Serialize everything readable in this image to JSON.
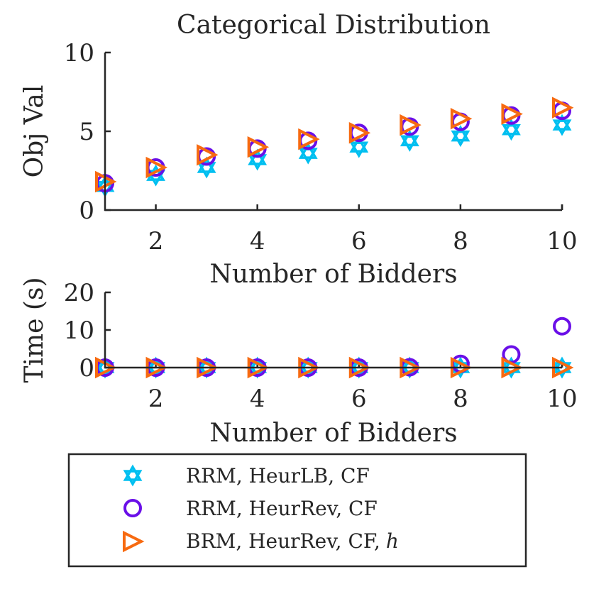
{
  "chart_data": [
    {
      "type": "scatter",
      "title": "Categorical Distribution",
      "xlabel": "Number of Bidders",
      "ylabel": "Obj Val",
      "xlim": [
        1,
        10
      ],
      "ylim": [
        0,
        10
      ],
      "xticks": [
        "2",
        "4",
        "6",
        "8",
        "10"
      ],
      "yticks": [
        "0",
        "5",
        "10"
      ],
      "x": [
        1,
        2,
        3,
        4,
        5,
        6,
        7,
        8,
        9,
        10
      ],
      "series": [
        {
          "name": "RRM, HeurLB, CF",
          "marker": "hexagram",
          "color": "#00BFF0",
          "values": [
            1.5,
            2.2,
            2.7,
            3.2,
            3.6,
            4.0,
            4.4,
            4.7,
            5.1,
            5.4
          ]
        },
        {
          "name": "RRM, HeurRev, CF",
          "marker": "circle",
          "color": "#6A0FE8",
          "values": [
            1.7,
            2.7,
            3.4,
            3.9,
            4.4,
            4.9,
            5.3,
            5.6,
            6.0,
            6.3
          ]
        },
        {
          "name": "BRM, HeurRev, CF, h",
          "marker": "triangle-right",
          "color": "#F76A10",
          "values": [
            1.8,
            2.7,
            3.5,
            4.0,
            4.5,
            4.9,
            5.4,
            5.8,
            6.1,
            6.5
          ]
        }
      ]
    },
    {
      "type": "scatter",
      "title": "",
      "xlabel": "Number of Bidders",
      "ylabel": "Time (s)",
      "xlim": [
        1,
        10
      ],
      "ylim": [
        0,
        20
      ],
      "xticks": [
        "2",
        "4",
        "6",
        "8",
        "10"
      ],
      "yticks": [
        "0",
        "10",
        "20"
      ],
      "x": [
        1,
        2,
        3,
        4,
        5,
        6,
        7,
        8,
        9,
        10
      ],
      "series": [
        {
          "name": "RRM, HeurLB, CF",
          "marker": "hexagram",
          "color": "#00BFF0",
          "values": [
            0,
            0,
            0,
            0,
            0,
            0,
            0,
            0,
            0,
            0
          ]
        },
        {
          "name": "RRM, HeurRev, CF",
          "marker": "circle",
          "color": "#6A0FE8",
          "values": [
            0,
            0,
            0,
            0,
            0,
            0,
            0.1,
            1.0,
            3.5,
            11.0
          ]
        },
        {
          "name": "BRM, HeurRev, CF, h",
          "marker": "triangle-right",
          "color": "#F76A10",
          "values": [
            0,
            0,
            0,
            0,
            0,
            0,
            0,
            0,
            0,
            0
          ]
        }
      ]
    }
  ],
  "legend": {
    "items": [
      {
        "label": "RRM, HeurLB, CF",
        "marker": "hexagram",
        "color": "#00BFF0"
      },
      {
        "label": "RRM, HeurRev, CF",
        "marker": "circle",
        "color": "#6A0FE8"
      },
      {
        "label": "BRM, HeurRev, CF,",
        "label_italic": "h",
        "marker": "triangle-right",
        "color": "#F76A10"
      }
    ]
  }
}
